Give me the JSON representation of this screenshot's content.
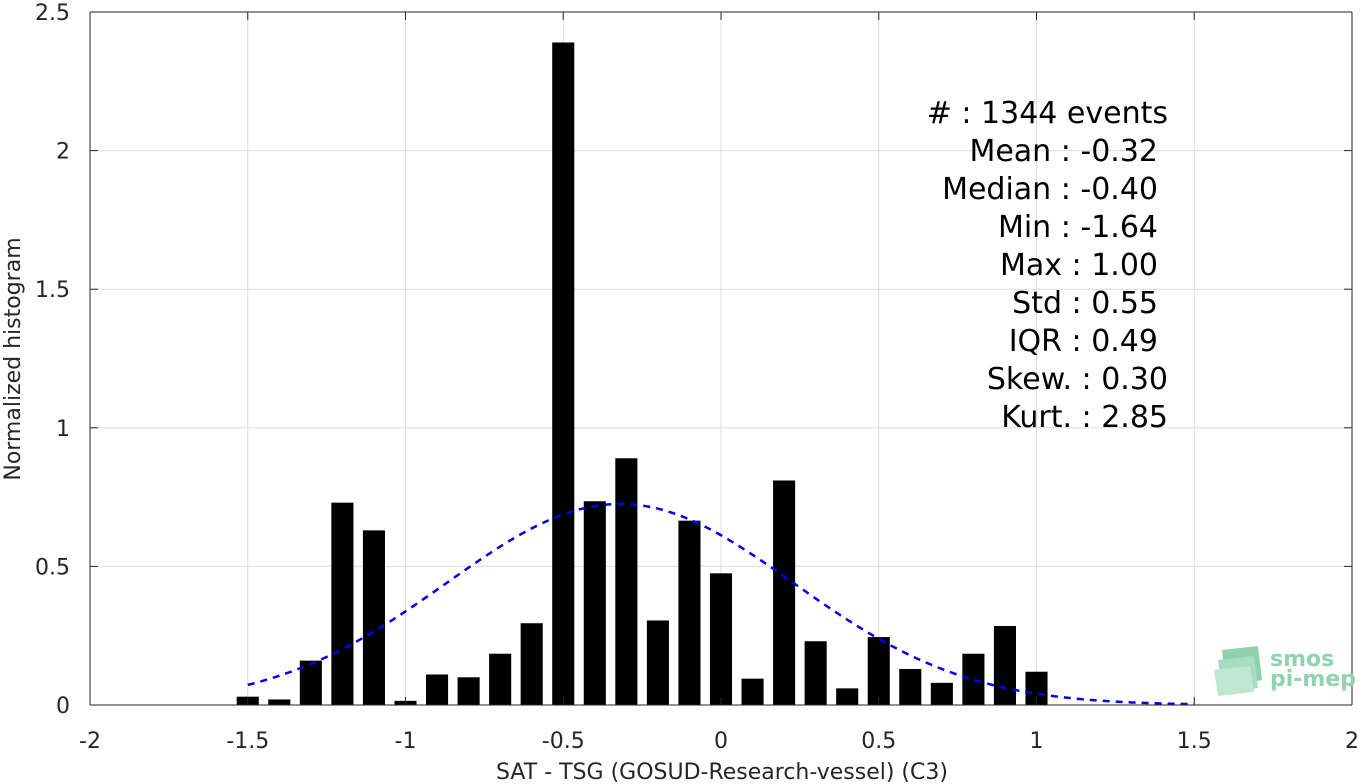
{
  "chart_data": {
    "type": "bar",
    "xlabel": "SAT - TSG (GOSUD-Research-vessel) (C3)",
    "ylabel": "Normalized histogram",
    "xlim": [
      -2,
      2
    ],
    "ylim": [
      0,
      2.5
    ],
    "grid": true,
    "x_ticks": [
      "-2",
      "-1.5",
      "-1",
      "-0.5",
      "0",
      "0.5",
      "1",
      "1.5",
      "2"
    ],
    "y_ticks": [
      "0",
      "0.5",
      "1",
      "1.5",
      "2",
      "2.5"
    ],
    "bar_color": "#000000",
    "bins": {
      "x": [
        -1.5,
        -1.4,
        -1.3,
        -1.2,
        -1.1,
        -1.0,
        -0.9,
        -0.8,
        -0.7,
        -0.6,
        -0.5,
        -0.4,
        -0.3,
        -0.2,
        -0.1,
        0.0,
        0.1,
        0.2,
        0.3,
        0.4,
        0.5,
        0.6,
        0.7,
        0.8,
        0.9,
        1.0
      ],
      "values": [
        0.03,
        0.02,
        0.16,
        0.73,
        0.63,
        0.015,
        0.11,
        0.1,
        0.185,
        0.295,
        2.39,
        0.735,
        0.89,
        0.305,
        0.665,
        0.475,
        0.095,
        0.81,
        0.23,
        0.06,
        0.245,
        0.13,
        0.08,
        0.185,
        0.285,
        0.12
      ]
    },
    "fit": {
      "name": "normal fit",
      "style": "dashed",
      "color": "#0000ee",
      "mean": -0.32,
      "std": 0.55,
      "range": [
        -1.5,
        1.5
      ]
    },
    "stats": [
      {
        "label": "#  : 1344 events"
      },
      {
        "label": "Mean : -0.32"
      },
      {
        "label": "Median : -0.40"
      },
      {
        "label": "Min : -1.64"
      },
      {
        "label": "Max : 1.00"
      },
      {
        "label": "Std : 0.55"
      },
      {
        "label": "IQR : 0.49"
      },
      {
        "label": "Skew. : 0.30"
      },
      {
        "label": "Kurt. : 2.85"
      }
    ]
  },
  "logo": {
    "line1": "smos",
    "line2": "pi-mep",
    "color": "#8fd3b0"
  }
}
